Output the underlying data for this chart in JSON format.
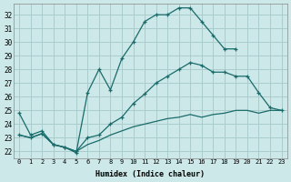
{
  "xlabel": "Humidex (Indice chaleur)",
  "bg_color": "#cce8e8",
  "grid_color": "#aacccc",
  "line_color": "#1a6b6b",
  "xlim": [
    -0.5,
    23.5
  ],
  "ylim": [
    21.5,
    32.8
  ],
  "xticks": [
    0,
    1,
    2,
    3,
    4,
    5,
    6,
    7,
    8,
    9,
    10,
    11,
    12,
    13,
    14,
    15,
    16,
    17,
    18,
    19,
    20,
    21,
    22,
    23
  ],
  "yticks": [
    22,
    23,
    24,
    25,
    26,
    27,
    28,
    29,
    30,
    31,
    32
  ],
  "line1_x": [
    0,
    1,
    2,
    3,
    4,
    5,
    6,
    7,
    8,
    9,
    10,
    11,
    12,
    13,
    14,
    15,
    16,
    17,
    18,
    19
  ],
  "line1_y": [
    24.8,
    23.2,
    23.5,
    22.5,
    22.3,
    21.9,
    26.3,
    28.0,
    26.5,
    28.8,
    30.0,
    31.5,
    32.0,
    32.0,
    32.5,
    32.5,
    31.5,
    30.5,
    29.5,
    29.5
  ],
  "line2_x": [
    0,
    1,
    2,
    3,
    4,
    5,
    6,
    7,
    8,
    9,
    10,
    11,
    12,
    13,
    14,
    15,
    16,
    17,
    18,
    19,
    20,
    21,
    22,
    23
  ],
  "line2_y": [
    23.2,
    23.0,
    23.3,
    22.5,
    22.3,
    22.0,
    23.0,
    23.2,
    24.0,
    24.5,
    25.5,
    26.2,
    27.0,
    27.5,
    28.0,
    28.5,
    28.3,
    27.8,
    27.8,
    27.5,
    27.5,
    26.3,
    25.2,
    25.0
  ],
  "line3_x": [
    0,
    1,
    2,
    3,
    4,
    5,
    6,
    7,
    8,
    9,
    10,
    11,
    12,
    13,
    14,
    15,
    16,
    17,
    18,
    19,
    20,
    21,
    22,
    23
  ],
  "line3_y": [
    23.2,
    23.0,
    23.3,
    22.5,
    22.3,
    22.0,
    22.5,
    22.8,
    23.2,
    23.5,
    23.8,
    24.0,
    24.2,
    24.4,
    24.5,
    24.7,
    24.5,
    24.7,
    24.8,
    25.0,
    25.0,
    24.8,
    25.0,
    25.0
  ]
}
